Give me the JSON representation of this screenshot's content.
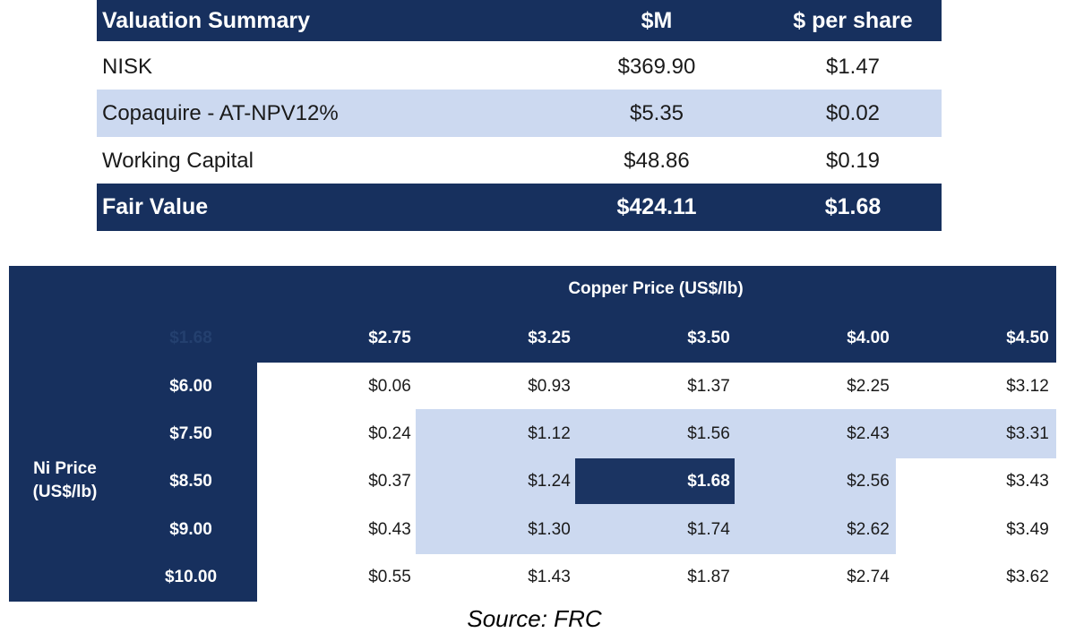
{
  "summary": {
    "headers": {
      "label": "Valuation Summary",
      "m": "$M",
      "per_share": "$ per share"
    },
    "rows": [
      {
        "label": "NISK",
        "m": "$369.90",
        "per_share": "$1.47"
      },
      {
        "label": "Copaquire - AT-NPV12%",
        "m": "$5.35",
        "per_share": "$0.02"
      },
      {
        "label": "Working Capital",
        "m": "$48.86",
        "per_share": "$0.19"
      }
    ],
    "total": {
      "label": "Fair Value",
      "m": "$424.11",
      "per_share": "$1.68"
    }
  },
  "sensitivity": {
    "title": "Copper Price (US$/lb)",
    "corner": "$1.68",
    "row_label_line1": "Ni Price",
    "row_label_line2": "(US$/lb)",
    "copper_prices": [
      "$2.75",
      "$3.25",
      "$3.50",
      "$4.00",
      "$4.50"
    ],
    "ni_prices": [
      "$6.00",
      "$7.50",
      "$8.50",
      "$9.00",
      "$10.00"
    ],
    "values": [
      [
        "$0.06",
        "$0.93",
        "$1.37",
        "$2.25",
        "$3.12"
      ],
      [
        "$0.24",
        "$1.12",
        "$1.56",
        "$2.43",
        "$3.31"
      ],
      [
        "$0.37",
        "$1.24",
        "$1.68",
        "$2.56",
        "$3.43"
      ],
      [
        "$0.43",
        "$1.30",
        "$1.74",
        "$2.62",
        "$3.49"
      ],
      [
        "$0.55",
        "$1.43",
        "$1.87",
        "$2.74",
        "$3.62"
      ]
    ]
  },
  "source": "Source: FRC",
  "colors": {
    "navy": "#17305e",
    "highlight": "#ccd9f0",
    "base_case": "#1b3462"
  }
}
